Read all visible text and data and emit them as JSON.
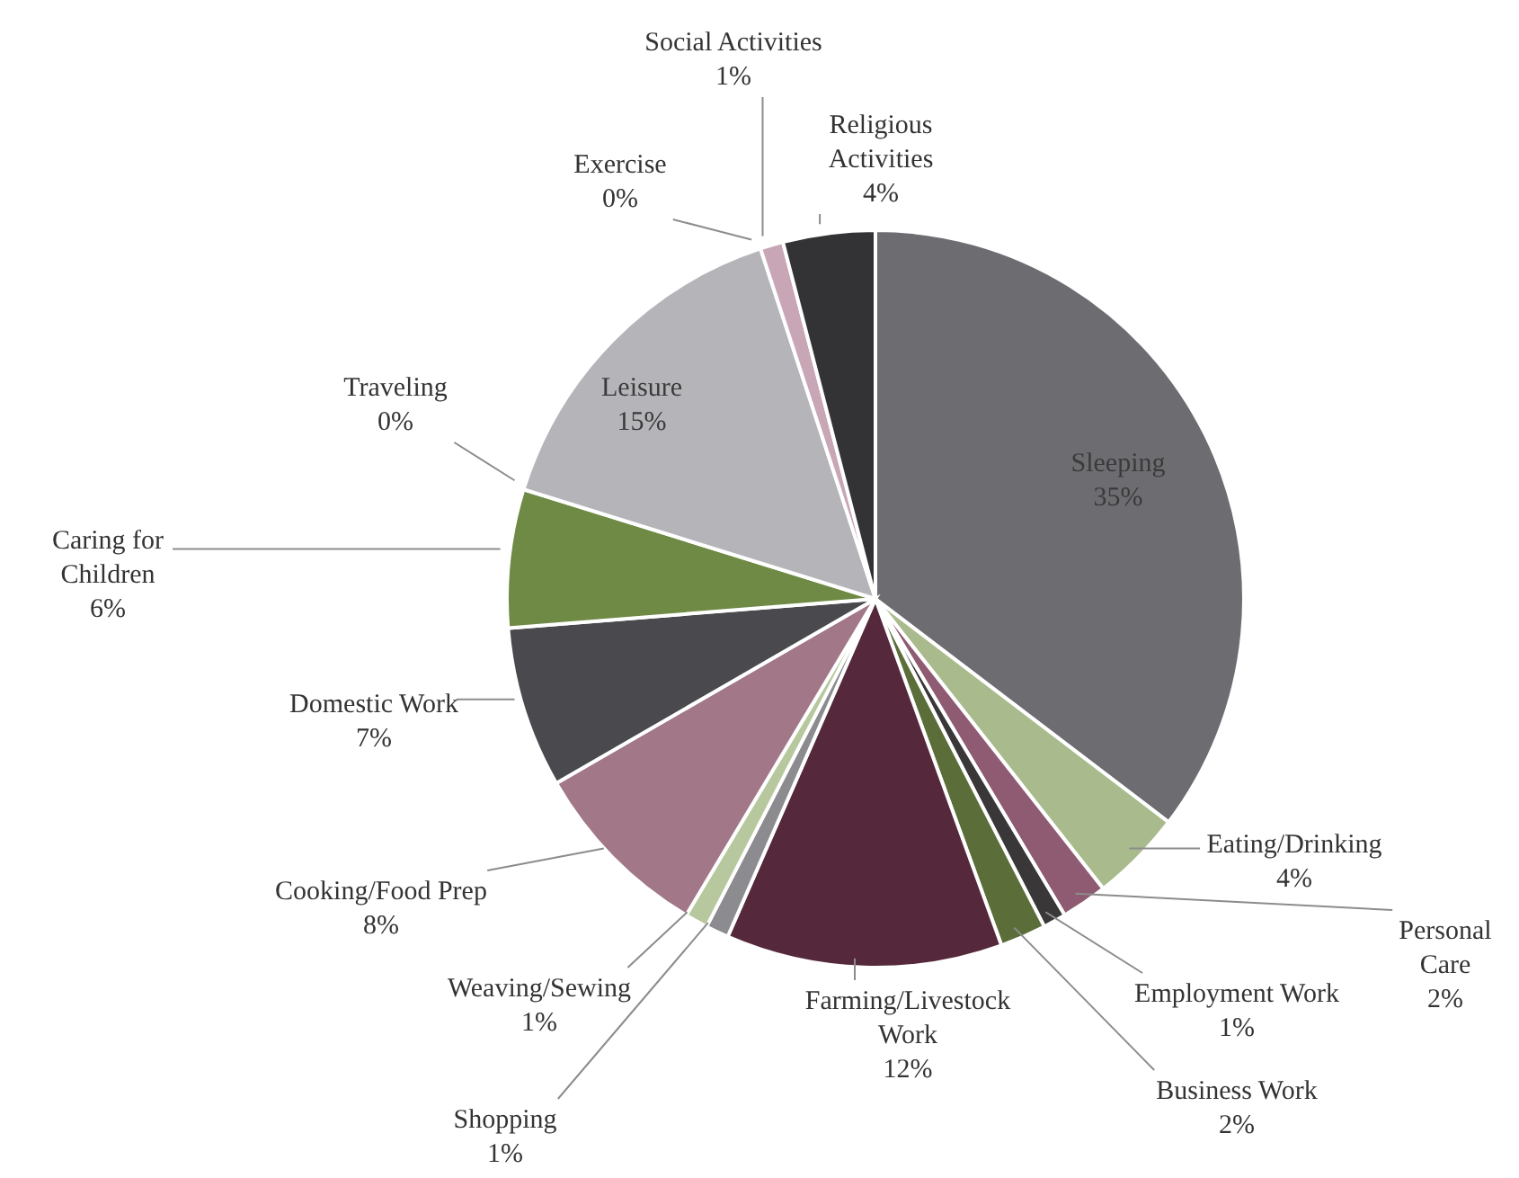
{
  "chart_data": {
    "type": "pie",
    "categories": [
      "Sleeping",
      "Eating/Drinking",
      "Personal Care",
      "Employment Work",
      "Business Work",
      "Farming/Livestock Work",
      "Shopping",
      "Weaving/Sewing",
      "Cooking/Food Prep",
      "Domestic Work",
      "Caring for Children",
      "Traveling",
      "Leisure",
      "Exercise",
      "Social Activities",
      "Religious Activities"
    ],
    "values": [
      35,
      4,
      2,
      1,
      2,
      12,
      1,
      1,
      8,
      7,
      6,
      0,
      15,
      0,
      1,
      4
    ],
    "colors": [
      "#6d6c71",
      "#a9bb8d",
      "#8f5b72",
      "#3a3739",
      "#5b6e3a",
      "#55293b",
      "#8b8b90",
      "#b7c89e",
      "#a27888",
      "#4a494e",
      "#6f8a45",
      "#ffffff",
      "#b5b4b9",
      "#e6e6e6",
      "#c8a6b6",
      "#333234"
    ],
    "value_labels": [
      "35%",
      "4%",
      "2%",
      "1%",
      "2%",
      "12%",
      "1%",
      "1%",
      "8%",
      "7%",
      "6%",
      "0%",
      "15%",
      "0%",
      "1%",
      "4%"
    ]
  }
}
